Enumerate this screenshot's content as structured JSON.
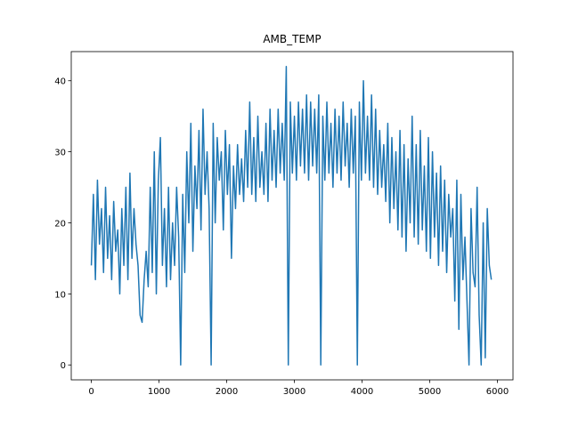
{
  "chart_data": {
    "type": "line",
    "title": "AMB_TEMP",
    "x": [
      0,
      30,
      60,
      90,
      120,
      150,
      180,
      210,
      240,
      270,
      300,
      330,
      360,
      390,
      420,
      450,
      480,
      510,
      540,
      570,
      600,
      630,
      660,
      690,
      720,
      750,
      780,
      810,
      840,
      870,
      900,
      930,
      960,
      990,
      1020,
      1050,
      1080,
      1110,
      1140,
      1170,
      1200,
      1230,
      1260,
      1290,
      1320,
      1350,
      1380,
      1410,
      1440,
      1470,
      1500,
      1530,
      1560,
      1590,
      1620,
      1650,
      1680,
      1710,
      1740,
      1770,
      1800,
      1830,
      1860,
      1890,
      1920,
      1950,
      1980,
      2010,
      2040,
      2070,
      2100,
      2130,
      2160,
      2190,
      2220,
      2250,
      2280,
      2310,
      2340,
      2370,
      2400,
      2430,
      2460,
      2490,
      2520,
      2550,
      2580,
      2610,
      2640,
      2670,
      2700,
      2730,
      2760,
      2790,
      2820,
      2850,
      2880,
      2910,
      2940,
      2970,
      3000,
      3030,
      3060,
      3090,
      3120,
      3150,
      3180,
      3210,
      3240,
      3270,
      3300,
      3330,
      3360,
      3390,
      3420,
      3450,
      3480,
      3510,
      3540,
      3570,
      3600,
      3630,
      3660,
      3690,
      3720,
      3750,
      3780,
      3810,
      3840,
      3870,
      3900,
      3930,
      3960,
      3990,
      4020,
      4050,
      4080,
      4110,
      4140,
      4170,
      4200,
      4230,
      4260,
      4290,
      4320,
      4350,
      4380,
      4410,
      4440,
      4470,
      4500,
      4530,
      4560,
      4590,
      4620,
      4650,
      4680,
      4710,
      4740,
      4770,
      4800,
      4830,
      4860,
      4890,
      4920,
      4950,
      4980,
      5010,
      5040,
      5070,
      5100,
      5130,
      5160,
      5190,
      5220,
      5250,
      5280,
      5310,
      5340,
      5370,
      5400,
      5430,
      5460,
      5490,
      5520,
      5550,
      5580,
      5610,
      5640,
      5670,
      5700,
      5730,
      5760,
      5790,
      5820,
      5850,
      5880,
      5910
    ],
    "series": [
      {
        "color": "#1f77b4",
        "values": [
          14,
          24,
          12,
          26,
          17,
          22,
          13,
          25,
          15,
          21,
          12,
          23,
          16,
          19,
          10,
          22,
          14,
          25,
          12,
          27,
          15,
          22,
          17,
          14,
          7,
          6,
          12,
          16,
          11,
          25,
          13,
          30,
          10,
          26,
          32,
          14,
          22,
          11,
          25,
          12,
          20,
          14,
          25,
          18,
          0,
          24,
          13,
          30,
          20,
          34,
          16,
          28,
          22,
          33,
          19,
          36,
          24,
          30,
          22,
          0,
          34,
          20,
          32,
          26,
          30,
          19,
          33,
          24,
          31,
          15,
          28,
          22,
          31,
          24,
          29,
          23,
          33,
          25,
          37,
          24,
          32,
          23,
          35,
          25,
          30,
          24,
          34,
          23,
          36,
          26,
          33,
          25,
          36,
          27,
          34,
          26,
          42,
          0,
          37,
          27,
          35,
          26,
          37,
          28,
          36,
          27,
          38,
          26,
          37,
          28,
          36,
          27,
          38,
          0,
          35,
          26,
          37,
          27,
          34,
          25,
          36,
          27,
          35,
          26,
          37,
          28,
          34,
          25,
          36,
          27,
          35,
          0,
          37,
          26,
          40,
          27,
          35,
          26,
          38,
          25,
          36,
          24,
          33,
          25,
          31,
          23,
          34,
          20,
          32,
          22,
          30,
          19,
          33,
          18,
          31,
          16,
          29,
          20,
          35,
          18,
          31,
          17,
          33,
          19,
          28,
          16,
          32,
          15,
          30,
          18,
          27,
          14,
          28,
          16,
          26,
          13,
          24,
          18,
          22,
          9,
          26,
          5,
          24,
          12,
          18,
          9,
          0,
          22,
          13,
          11,
          25,
          7,
          0,
          20,
          1,
          22,
          14,
          12
        ]
      }
    ],
    "xlim": [
      -297,
      6230
    ],
    "ylim": [
      -2.1,
      44.1
    ],
    "xticks": [
      0,
      1000,
      2000,
      3000,
      4000,
      5000,
      6000
    ],
    "yticks": [
      0,
      10,
      20,
      30,
      40
    ]
  }
}
